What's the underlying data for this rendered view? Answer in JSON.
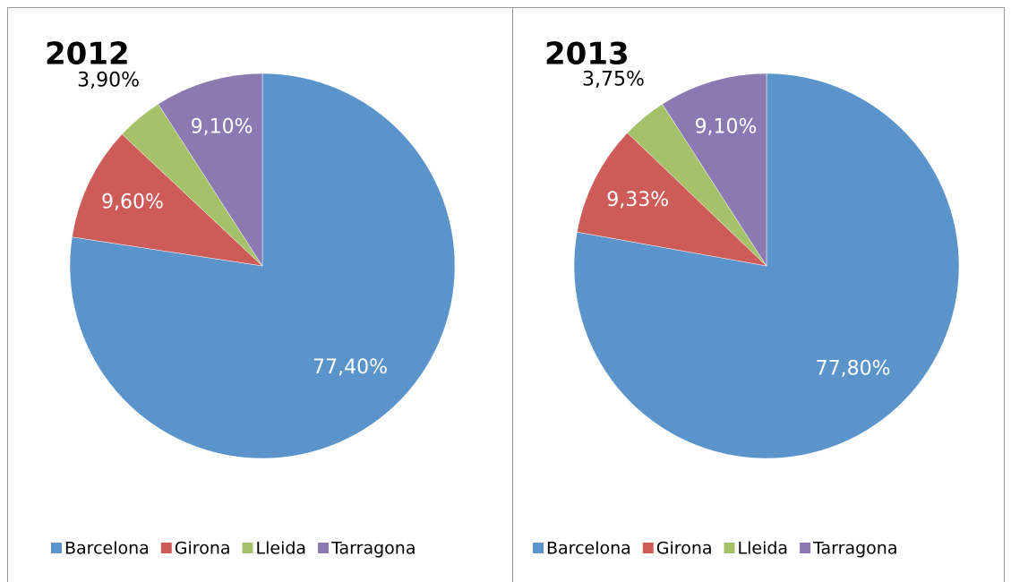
{
  "chart_data": [
    {
      "type": "pie",
      "title": "2012",
      "categories": [
        "Barcelona",
        "Girona",
        "Lleida",
        "Tarragona"
      ],
      "values": [
        77.4,
        9.6,
        3.9,
        9.1
      ],
      "value_labels": [
        "77,40%",
        "9,60%",
        "3,90%",
        "9,10%"
      ],
      "colors": [
        "#5b93cb",
        "#cd5c58",
        "#a5c26b",
        "#8d79b2"
      ],
      "legend": "bottom"
    },
    {
      "type": "pie",
      "title": "2013",
      "categories": [
        "Barcelona",
        "Girona",
        "Lleida",
        "Tarragona"
      ],
      "values": [
        77.8,
        9.33,
        3.75,
        9.1
      ],
      "value_labels": [
        "77,80%",
        "9,33%",
        "3,75%",
        "9,10%"
      ],
      "colors": [
        "#5b93cb",
        "#cd5c58",
        "#a5c26b",
        "#8d79b2"
      ],
      "legend": "bottom"
    }
  ]
}
